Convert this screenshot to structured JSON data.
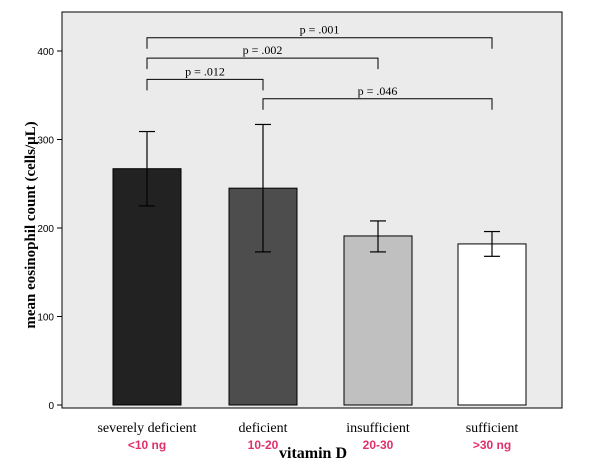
{
  "chart_data": {
    "type": "bar",
    "categories": [
      "severely deficient",
      "deficient",
      "insufficient",
      "sufficient"
    ],
    "subcategories": [
      "<10 ng",
      "10-20",
      "20-30",
      ">30 ng"
    ],
    "values": [
      267,
      245,
      191,
      182
    ],
    "error_low": [
      225,
      173,
      173,
      168
    ],
    "error_high": [
      309,
      317,
      208,
      196
    ],
    "bar_colors": [
      "#222222",
      "#4d4d4d",
      "#c0c0c0",
      "#ffffff"
    ],
    "subcategory_color": "#e0306a",
    "plot_background": "#ebebeb",
    "xlabel": "vitamin D",
    "ylabel": "mean eosinophil count (cells/μL)",
    "yticks": [
      0,
      100,
      200,
      300,
      400
    ],
    "ylim": [
      0,
      440
    ],
    "grid": false,
    "annotations": [
      {
        "from": 0,
        "to": 3,
        "level": 415,
        "label": "p = .001"
      },
      {
        "from": 0,
        "to": 2,
        "level": 392,
        "label": "p = .002"
      },
      {
        "from": 0,
        "to": 1,
        "level": 368,
        "label": "p = .012"
      },
      {
        "from": 1,
        "to": 3,
        "level": 346,
        "label": "p = .046"
      }
    ]
  }
}
